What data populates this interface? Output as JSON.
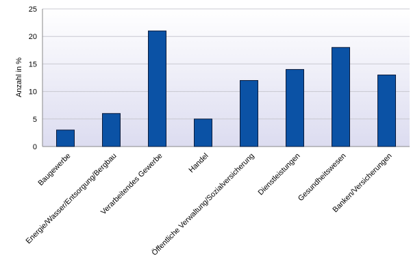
{
  "chart_data": {
    "type": "bar",
    "y_label": "Anzahl in %",
    "categories": [
      "Baugewerbe",
      "Energie/Wasser/Entsorgung/Bergbau",
      "Verarbeitendes Gewerbe",
      "Handel",
      "Öffentliche Verwaltung/Sozialversicherung",
      "Dienstleistungen",
      "Gesundheitswesen",
      "Banken/Versicherungen"
    ],
    "values": [
      3,
      6,
      21,
      5,
      12,
      14,
      18,
      13
    ],
    "color": "#0b52a5",
    "ylim": [
      0,
      25
    ],
    "yticks": [
      0,
      5,
      10,
      15,
      20,
      25
    ],
    "grid": true
  }
}
